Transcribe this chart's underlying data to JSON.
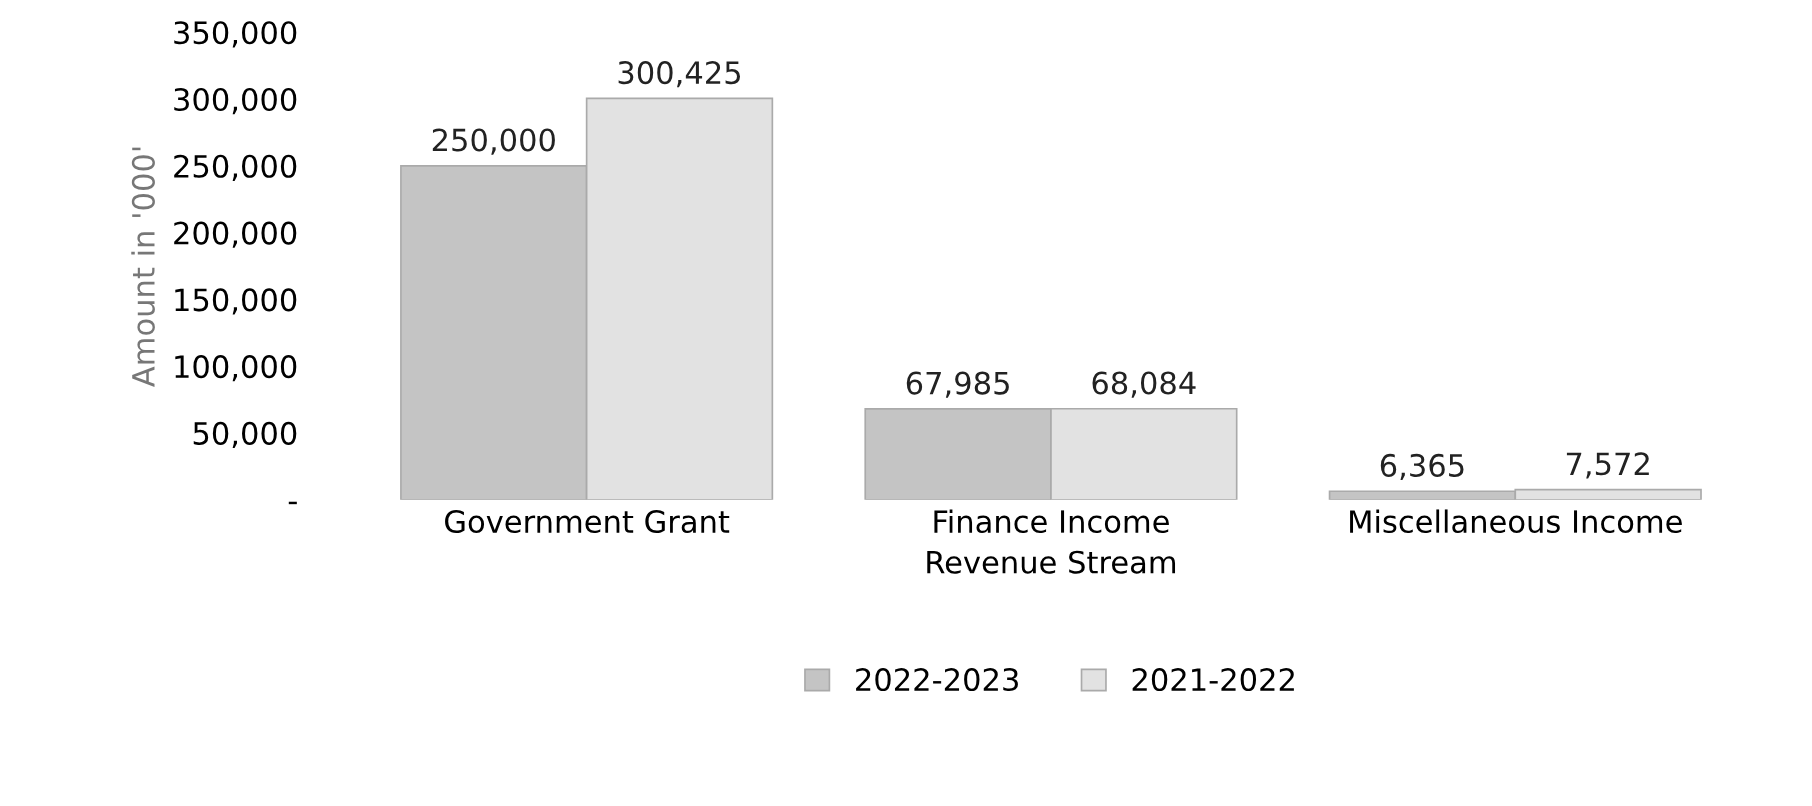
{
  "chart_data": {
    "type": "bar",
    "xlabel": "Revenue Stream",
    "ylabel": "Amount in '000'",
    "categories": [
      "Government Grant",
      "Finance Income",
      "Miscellaneous Income"
    ],
    "series": [
      {
        "name": "2022-2023",
        "color": "#c4c4c4",
        "values": [
          250000,
          67985,
          6365
        ],
        "value_labels": [
          "250,000",
          "67,985",
          "6,365"
        ]
      },
      {
        "name": "2021-2022",
        "color": "#e2e2e2",
        "values": [
          300425,
          68084,
          7572
        ],
        "value_labels": [
          "300,425",
          "68,084",
          "7,572"
        ]
      }
    ],
    "ylim": [
      0,
      350000
    ],
    "yticks": [
      {
        "value": 0,
        "label": "-"
      },
      {
        "value": 50000,
        "label": "50,000"
      },
      {
        "value": 100000,
        "label": "100,000"
      },
      {
        "value": 150000,
        "label": "150,000"
      },
      {
        "value": 200000,
        "label": "200,000"
      },
      {
        "value": 250000,
        "label": "250,000"
      },
      {
        "value": 300000,
        "label": "300,000"
      },
      {
        "value": 350000,
        "label": "350,000"
      }
    ],
    "legend": "bottom",
    "grid": false
  }
}
